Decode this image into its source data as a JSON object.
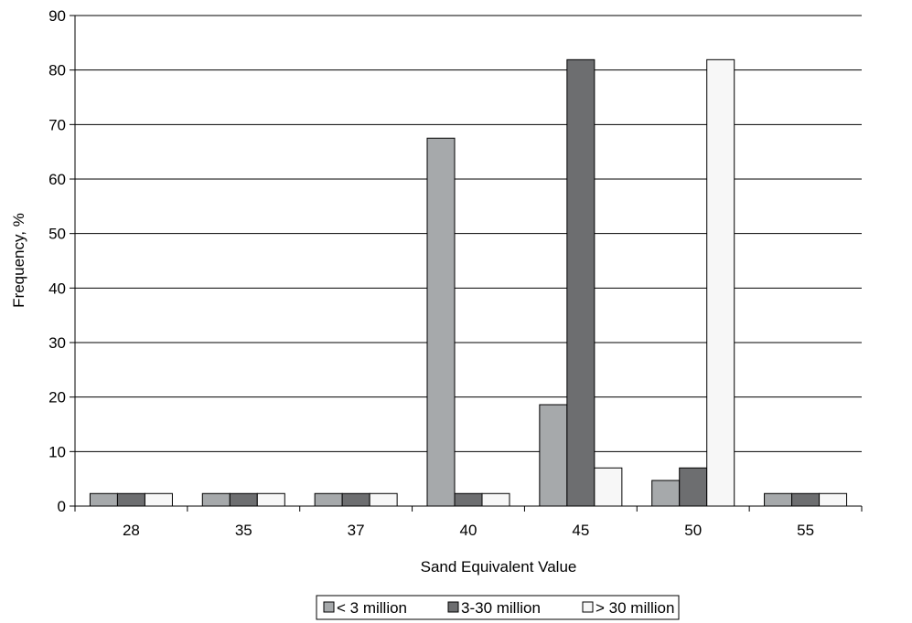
{
  "chart_data": {
    "type": "bar",
    "xlabel": "Sand Equivalent Value",
    "ylabel": "Frequency, %",
    "ylim": [
      0,
      90
    ],
    "yticks": [
      0,
      10,
      20,
      30,
      40,
      50,
      60,
      70,
      80,
      90
    ],
    "grid": "horizontal",
    "legend_position": "bottom",
    "categories": [
      "28",
      "35",
      "37",
      "40",
      "45",
      "50",
      "55"
    ],
    "series": [
      {
        "name": "< 3 million",
        "color": "#a6a9ab",
        "values": [
          2.3,
          2.3,
          2.3,
          67.5,
          18.6,
          4.7,
          2.3
        ]
      },
      {
        "name": "3-30 million",
        "color": "#6d6e70",
        "values": [
          2.3,
          2.3,
          2.3,
          2.3,
          81.9,
          7.0,
          2.3
        ]
      },
      {
        "name": "> 30 million",
        "color": "#f7f7f7",
        "values": [
          2.3,
          2.3,
          2.3,
          2.3,
          7.0,
          81.9,
          2.3
        ]
      }
    ]
  }
}
